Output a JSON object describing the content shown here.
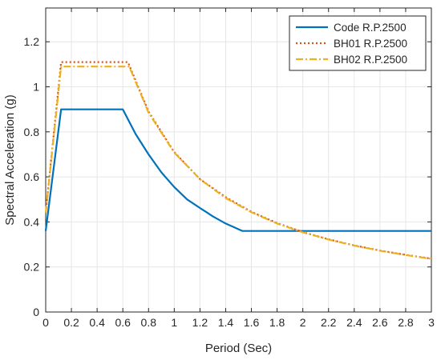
{
  "chart_data": {
    "type": "line",
    "title": "",
    "xlabel": "Period (Sec)",
    "ylabel": "Spectral Acceleration (g)",
    "xlim": [
      0,
      3
    ],
    "ylim": [
      0,
      1.35
    ],
    "x_ticks": [
      0,
      0.2,
      0.4,
      0.6,
      0.8,
      1,
      1.2,
      1.4,
      1.6,
      1.8,
      2,
      2.2,
      2.4,
      2.6,
      2.8,
      3
    ],
    "x_tick_labels": [
      "0",
      "0.2",
      "0.4",
      "0.6",
      "0.8",
      "1",
      "1.2",
      "1.4",
      "1.6",
      "1.8",
      "2",
      "2.2",
      "2.4",
      "2.6",
      "2.8",
      "3"
    ],
    "y_ticks": [
      0,
      0.2,
      0.4,
      0.6,
      0.8,
      1,
      1.2
    ],
    "y_tick_labels": [
      "0",
      "0.2",
      "0.4",
      "0.6",
      "0.8",
      "1",
      "1.2"
    ],
    "grid": true,
    "legend_position": "top-right",
    "series": [
      {
        "name": "Code R.P.2500",
        "color": "#0072BD",
        "style": "solid",
        "x": [
          0,
          0.12,
          0.6,
          0.7,
          0.8,
          0.9,
          1.0,
          1.1,
          1.2,
          1.3,
          1.4,
          1.53,
          3.0
        ],
        "y": [
          0.36,
          0.9,
          0.9,
          0.79,
          0.7,
          0.62,
          0.555,
          0.5,
          0.462,
          0.425,
          0.393,
          0.36,
          0.36
        ]
      },
      {
        "name": "BH01 R.P.2500",
        "color": "#D95319",
        "style": "dotted",
        "x": [
          0,
          0.12,
          0.64,
          0.8,
          1.0,
          1.2,
          1.4,
          1.6,
          1.8,
          2.0,
          2.2,
          2.4,
          2.6,
          2.8,
          3.0
        ],
        "y": [
          0.44,
          1.11,
          1.11,
          0.89,
          0.71,
          0.59,
          0.51,
          0.445,
          0.395,
          0.355,
          0.323,
          0.296,
          0.273,
          0.254,
          0.237
        ]
      },
      {
        "name": "BH02 R.P.2500",
        "color": "#EDB120",
        "style": "dashdot",
        "x": [
          0,
          0.12,
          0.65,
          0.8,
          1.0,
          1.2,
          1.4,
          1.6,
          1.8,
          2.0,
          2.2,
          2.4,
          2.6,
          2.8,
          3.0
        ],
        "y": [
          0.44,
          1.09,
          1.09,
          0.885,
          0.708,
          0.59,
          0.506,
          0.443,
          0.393,
          0.354,
          0.322,
          0.295,
          0.272,
          0.253,
          0.236
        ]
      }
    ]
  }
}
